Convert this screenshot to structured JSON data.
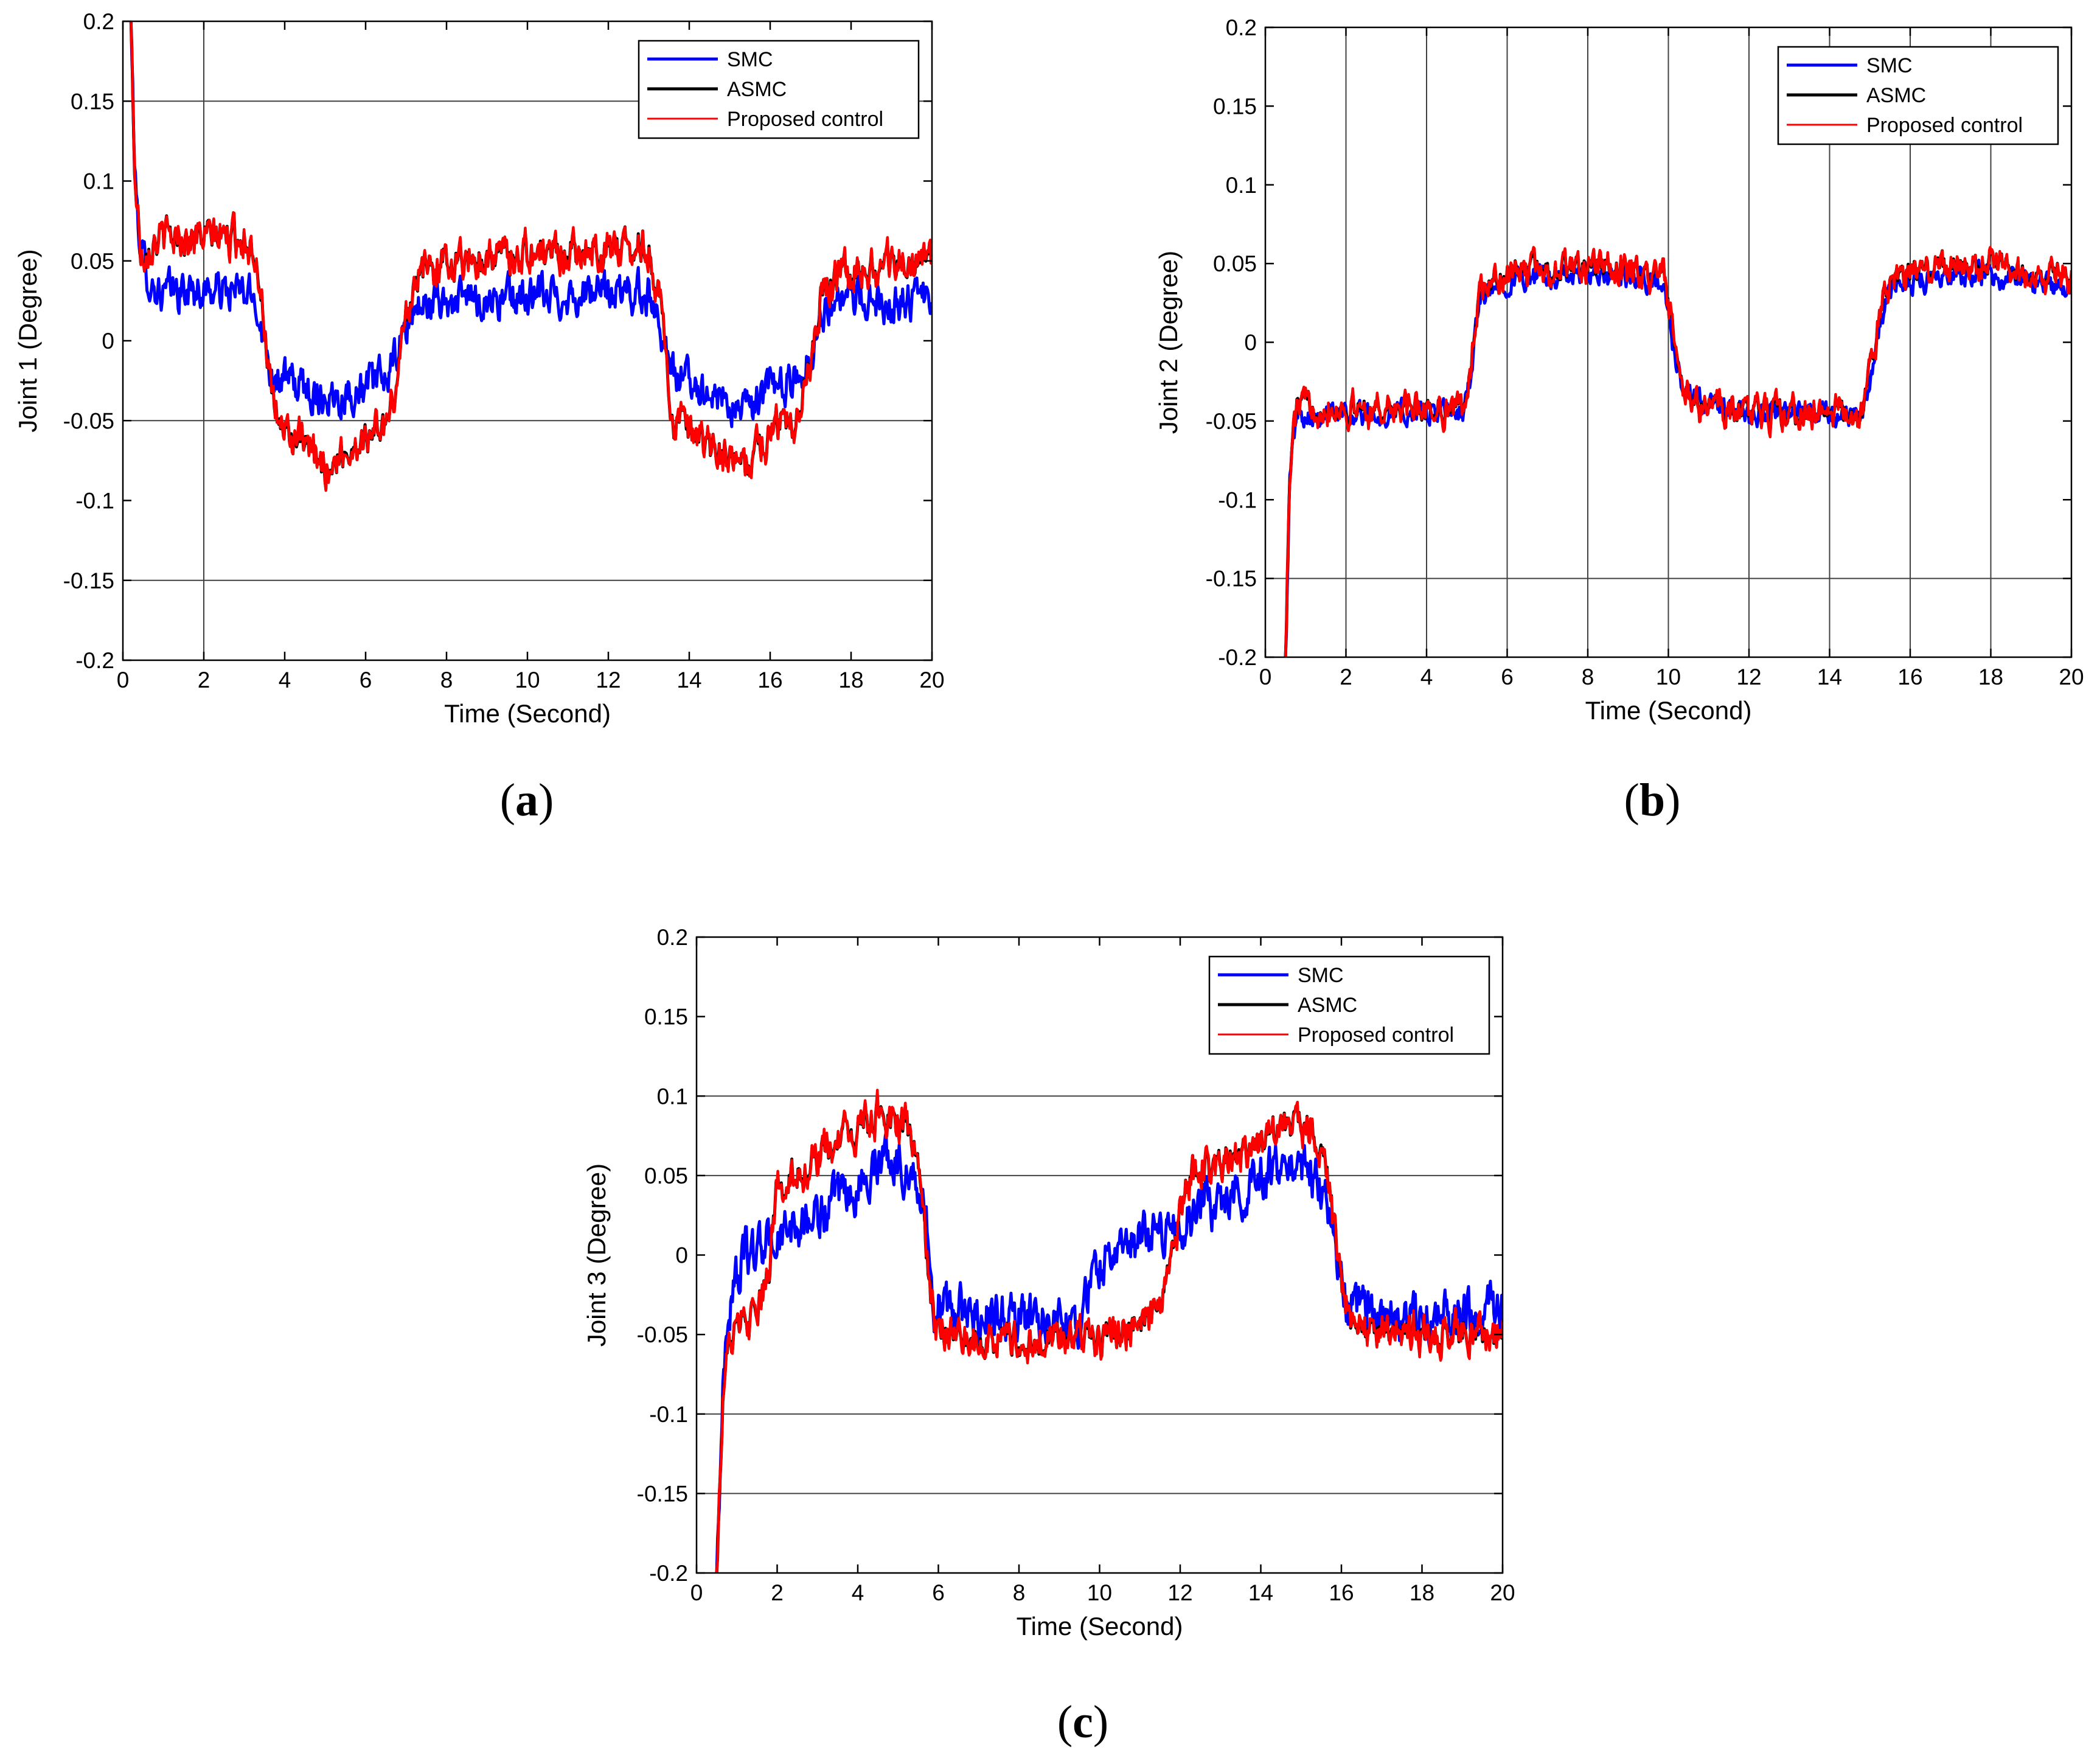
{
  "figure": {
    "colors": {
      "SMC": "#0000ff",
      "ASMC": "#000000",
      "Proposed control": "#ff0000",
      "grid": "#404040",
      "axes": "#000000"
    }
  },
  "chart_data": [
    {
      "panel": "a",
      "panel_label": "a",
      "type": "line",
      "title": "",
      "xlabel": "Time (Second)",
      "ylabel": "Joint 1 (Degree)",
      "xlim": [
        0,
        20
      ],
      "ylim": [
        -0.2,
        0.2
      ],
      "xticks": [
        "0",
        "2",
        "4",
        "6",
        "8",
        "10",
        "12",
        "14",
        "16",
        "18",
        "20"
      ],
      "yticks": [
        "-0.2",
        "-0.15",
        "-0.1",
        "-0.05",
        "0",
        "0.05",
        "0.1",
        "0.15",
        "0.2"
      ],
      "grid": {
        "vertical_at": [
          2
        ],
        "horizontal_at": [
          0.15,
          -0.05,
          -0.15
        ]
      },
      "legend_position": "top-right",
      "legend": [
        "SMC",
        "ASMC",
        "Proposed control"
      ],
      "series": [
        {
          "name": "SMC",
          "x": [
            0.2,
            0.3,
            0.45,
            0.7,
            1,
            2,
            3,
            3.3,
            3.5,
            3.7,
            4,
            5,
            6,
            6.6,
            6.9,
            7.2,
            8,
            10,
            12,
            13,
            13.3,
            13.6,
            14,
            15,
            15.4,
            16,
            16.6,
            17,
            17.3,
            18,
            20
          ],
          "y": [
            0.2,
            0.1,
            0.055,
            0.035,
            0.03,
            0.032,
            0.03,
            0.025,
            0.0,
            -0.02,
            -0.025,
            -0.035,
            -0.03,
            -0.02,
            0.0,
            0.02,
            0.025,
            0.027,
            0.03,
            0.03,
            0.01,
            -0.02,
            -0.025,
            -0.04,
            -0.045,
            -0.03,
            -0.025,
            -0.01,
            0.02,
            0.025,
            0.025
          ],
          "noise": 0.01
        },
        {
          "name": "ASMC",
          "x": [
            0.2,
            0.3,
            0.45,
            0.7,
            1,
            2,
            3,
            3.3,
            3.5,
            3.7,
            4,
            5,
            6,
            6.6,
            6.9,
            7.2,
            8,
            10,
            12,
            13,
            13.3,
            13.6,
            14,
            15,
            15.4,
            16,
            16.6,
            17,
            17.3,
            18,
            20
          ],
          "y": [
            0.2,
            0.1,
            0.055,
            0.062,
            0.065,
            0.065,
            0.065,
            0.055,
            0.01,
            -0.045,
            -0.055,
            -0.08,
            -0.06,
            -0.05,
            0.0,
            0.04,
            0.05,
            0.055,
            0.058,
            0.06,
            0.02,
            -0.05,
            -0.06,
            -0.075,
            -0.08,
            -0.055,
            -0.05,
            -0.01,
            0.035,
            0.045,
            0.05
          ],
          "noise": 0.009
        },
        {
          "name": "Proposed control",
          "x": [
            0.2,
            0.3,
            0.45,
            0.7,
            1,
            2,
            3,
            3.3,
            3.5,
            3.7,
            4,
            5,
            6,
            6.6,
            6.9,
            7.2,
            8,
            10,
            12,
            13,
            13.3,
            13.6,
            14,
            15,
            15.4,
            16,
            16.6,
            17,
            17.3,
            18,
            20
          ],
          "y": [
            0.2,
            0.1,
            0.055,
            0.062,
            0.065,
            0.065,
            0.065,
            0.055,
            0.01,
            -0.045,
            -0.055,
            -0.08,
            -0.06,
            -0.05,
            0.0,
            0.04,
            0.05,
            0.055,
            0.058,
            0.06,
            0.02,
            -0.05,
            -0.06,
            -0.075,
            -0.08,
            -0.055,
            -0.05,
            -0.01,
            0.035,
            0.045,
            0.05
          ],
          "noise": 0.01
        }
      ]
    },
    {
      "panel": "b",
      "panel_label": "b",
      "type": "line",
      "title": "",
      "xlabel": "Time (Second)",
      "ylabel": "Joint 2 (Degree)",
      "xlim": [
        0,
        20
      ],
      "ylim": [
        -0.2,
        0.2
      ],
      "xticks": [
        "0",
        "2",
        "4",
        "6",
        "8",
        "10",
        "12",
        "14",
        "16",
        "18",
        "20"
      ],
      "yticks": [
        "-0.2",
        "-0.15",
        "-0.1",
        "-0.05",
        "0",
        "0.05",
        "0.1",
        "0.15",
        "0.2"
      ],
      "grid": {
        "vertical_at": [
          2,
          4,
          6,
          8,
          10,
          12,
          14,
          16,
          18
        ],
        "horizontal_at": [
          -0.15
        ]
      },
      "legend_position": "top-right",
      "legend": [
        "SMC",
        "ASMC",
        "Proposed control"
      ],
      "series": [
        {
          "name": "SMC",
          "x": [
            0.5,
            0.6,
            0.7,
            0.8,
            1,
            2,
            4,
            4.9,
            5.1,
            5.3,
            6,
            8,
            9.9,
            10.1,
            10.4,
            11,
            12,
            14,
            14.8,
            15.1,
            15.4,
            16,
            18,
            20
          ],
          "y": [
            -0.2,
            -0.09,
            -0.06,
            -0.045,
            -0.045,
            -0.045,
            -0.045,
            -0.045,
            -0.02,
            0.025,
            0.04,
            0.042,
            0.038,
            0.0,
            -0.035,
            -0.04,
            -0.045,
            -0.045,
            -0.045,
            -0.01,
            0.03,
            0.04,
            0.042,
            0.035
          ],
          "noise": 0.006
        },
        {
          "name": "ASMC",
          "x": [
            0.5,
            0.6,
            0.7,
            0.8,
            1,
            2,
            4,
            4.9,
            5.1,
            5.3,
            6,
            8,
            9.9,
            10.1,
            10.4,
            11,
            12,
            14,
            14.8,
            15.1,
            15.4,
            16,
            18,
            20
          ],
          "y": [
            -0.2,
            -0.09,
            -0.055,
            -0.04,
            -0.04,
            -0.042,
            -0.042,
            -0.042,
            -0.015,
            0.03,
            0.045,
            0.048,
            0.042,
            0.005,
            -0.035,
            -0.04,
            -0.045,
            -0.045,
            -0.045,
            -0.005,
            0.035,
            0.045,
            0.05,
            0.04
          ],
          "noise": 0.007
        },
        {
          "name": "Proposed control",
          "x": [
            0.5,
            0.6,
            0.7,
            0.8,
            1,
            2,
            4,
            4.9,
            5.1,
            5.3,
            6,
            8,
            9.9,
            10.1,
            10.4,
            11,
            12,
            14,
            14.8,
            15.1,
            15.4,
            16,
            18,
            20
          ],
          "y": [
            -0.2,
            -0.09,
            -0.055,
            -0.04,
            -0.04,
            -0.042,
            -0.042,
            -0.042,
            -0.015,
            0.03,
            0.045,
            0.048,
            0.042,
            0.005,
            -0.035,
            -0.04,
            -0.045,
            -0.045,
            -0.045,
            -0.005,
            0.035,
            0.045,
            0.05,
            0.04
          ],
          "noise": 0.008
        }
      ]
    },
    {
      "panel": "c",
      "panel_label": "c",
      "type": "line",
      "title": "",
      "xlabel": "Time (Second)",
      "ylabel": "Joint 3 (Degree)",
      "xlim": [
        0,
        20
      ],
      "ylim": [
        -0.2,
        0.2
      ],
      "xticks": [
        "0",
        "2",
        "4",
        "6",
        "8",
        "10",
        "12",
        "14",
        "16",
        "18",
        "20"
      ],
      "yticks": [
        "-0.2",
        "-0.15",
        "-0.1",
        "-0.05",
        "0",
        "0.05",
        "0.1",
        "0.15",
        "0.2"
      ],
      "grid": {
        "vertical_at": [],
        "horizontal_at": [
          0.1,
          0.05,
          -0.1,
          -0.15
        ]
      },
      "legend_position": "top-right",
      "legend": [
        "SMC",
        "ASMC",
        "Proposed control"
      ],
      "series": [
        {
          "name": "SMC",
          "x": [
            0.5,
            0.6,
            0.7,
            0.9,
            1.2,
            2,
            3,
            4,
            4.6,
            5.2,
            5.5,
            5.7,
            5.9,
            6.3,
            8,
            9.5,
            10,
            11,
            12,
            13,
            14,
            14.8,
            15.3,
            15.6,
            15.9,
            16.2,
            18,
            20
          ],
          "y": [
            -0.2,
            -0.12,
            -0.06,
            -0.02,
            0.0,
            0.01,
            0.025,
            0.04,
            0.065,
            0.055,
            0.045,
            0.02,
            -0.03,
            -0.035,
            -0.04,
            -0.04,
            -0.005,
            0.01,
            0.02,
            0.035,
            0.05,
            0.06,
            0.05,
            0.035,
            0.0,
            -0.035,
            -0.04,
            -0.035
          ],
          "noise": 0.012
        },
        {
          "name": "ASMC",
          "x": [
            0.5,
            0.6,
            0.7,
            0.9,
            1.2,
            1.5,
            1.8,
            2,
            3,
            4,
            4.6,
            5.2,
            5.5,
            5.7,
            5.9,
            6.3,
            8,
            10,
            11,
            11.5,
            11.8,
            12.2,
            14,
            14.8,
            15.3,
            15.6,
            15.9,
            16.2,
            18,
            20
          ],
          "y": [
            -0.2,
            -0.12,
            -0.07,
            -0.05,
            -0.045,
            -0.04,
            -0.01,
            0.045,
            0.06,
            0.08,
            0.09,
            0.08,
            0.06,
            0.0,
            -0.045,
            -0.05,
            -0.055,
            -0.05,
            -0.045,
            -0.04,
            0.0,
            0.05,
            0.07,
            0.085,
            0.08,
            0.065,
            0.0,
            -0.045,
            -0.05,
            -0.05
          ],
          "noise": 0.009
        },
        {
          "name": "Proposed control",
          "x": [
            0.5,
            0.6,
            0.7,
            0.9,
            1.2,
            1.5,
            1.8,
            2,
            3,
            4,
            4.6,
            5.2,
            5.5,
            5.7,
            5.9,
            6.3,
            8,
            10,
            11,
            11.5,
            11.8,
            12.2,
            14,
            14.8,
            15.3,
            15.6,
            15.9,
            16.2,
            18,
            20
          ],
          "y": [
            -0.2,
            -0.12,
            -0.07,
            -0.05,
            -0.045,
            -0.04,
            -0.01,
            0.045,
            0.06,
            0.08,
            0.09,
            0.08,
            0.06,
            0.0,
            -0.045,
            -0.05,
            -0.055,
            -0.05,
            -0.045,
            -0.04,
            0.0,
            0.05,
            0.07,
            0.085,
            0.08,
            0.065,
            0.0,
            -0.045,
            -0.05,
            -0.05
          ],
          "noise": 0.01
        }
      ]
    }
  ]
}
